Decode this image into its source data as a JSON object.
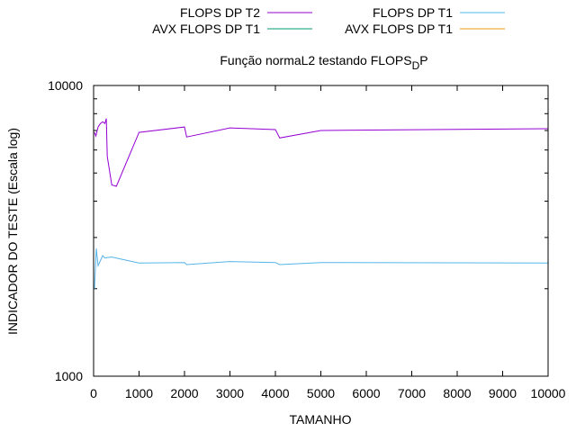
{
  "chart_data": {
    "type": "line",
    "title": "Função normaL2 testando FLOPS",
    "title_subscript": "D",
    "title_suffix": "P",
    "xlabel": "TAMANHO",
    "ylabel": "INDICADOR DO TESTE (Escala log)",
    "xlim": [
      0,
      10000
    ],
    "ylim": [
      1000,
      10000
    ],
    "y_scale": "log",
    "grid": false,
    "legend_position": "top",
    "x_ticks": [
      0,
      1000,
      2000,
      3000,
      4000,
      5000,
      6000,
      7000,
      8000,
      9000,
      10000
    ],
    "x_tick_labels": [
      "0",
      "1000",
      "2000",
      "3000",
      "4000",
      "5000",
      "6000",
      "7000",
      "8000",
      "9000",
      "10000"
    ],
    "y_ticks": [
      1000,
      10000
    ],
    "y_tick_labels": [
      "1000",
      "10000"
    ],
    "series": [
      {
        "name": "FLOPS DP T2",
        "color": "#9400d3",
        "points": [
          [
            20,
            6900
          ],
          [
            50,
            6700
          ],
          [
            80,
            7000
          ],
          [
            100,
            7200
          ],
          [
            150,
            7400
          ],
          [
            200,
            7500
          ],
          [
            250,
            7400
          ],
          [
            280,
            7700
          ],
          [
            300,
            5700
          ],
          [
            400,
            4550
          ],
          [
            500,
            4500
          ],
          [
            1000,
            6900
          ],
          [
            2000,
            7200
          ],
          [
            2048,
            6650
          ],
          [
            3000,
            7150
          ],
          [
            4000,
            7050
          ],
          [
            4096,
            6600
          ],
          [
            5000,
            7000
          ],
          [
            10000,
            7100
          ]
        ]
      },
      {
        "name": "FLOPS DP T1",
        "color": "#56b4e9",
        "points": [
          [
            20,
            2000
          ],
          [
            60,
            2750
          ],
          [
            100,
            2400
          ],
          [
            150,
            2500
          ],
          [
            200,
            2600
          ],
          [
            250,
            2550
          ],
          [
            300,
            2560
          ],
          [
            400,
            2570
          ],
          [
            500,
            2550
          ],
          [
            1000,
            2450
          ],
          [
            2000,
            2460
          ],
          [
            2048,
            2420
          ],
          [
            3000,
            2480
          ],
          [
            4000,
            2460
          ],
          [
            4096,
            2420
          ],
          [
            5000,
            2460
          ],
          [
            10000,
            2450
          ]
        ]
      },
      {
        "name": "AVX FLOPS DP T1",
        "color": "#009e73",
        "points": []
      },
      {
        "name": "AVX FLOPS DP T1",
        "color": "#e69f00",
        "points": []
      }
    ]
  }
}
